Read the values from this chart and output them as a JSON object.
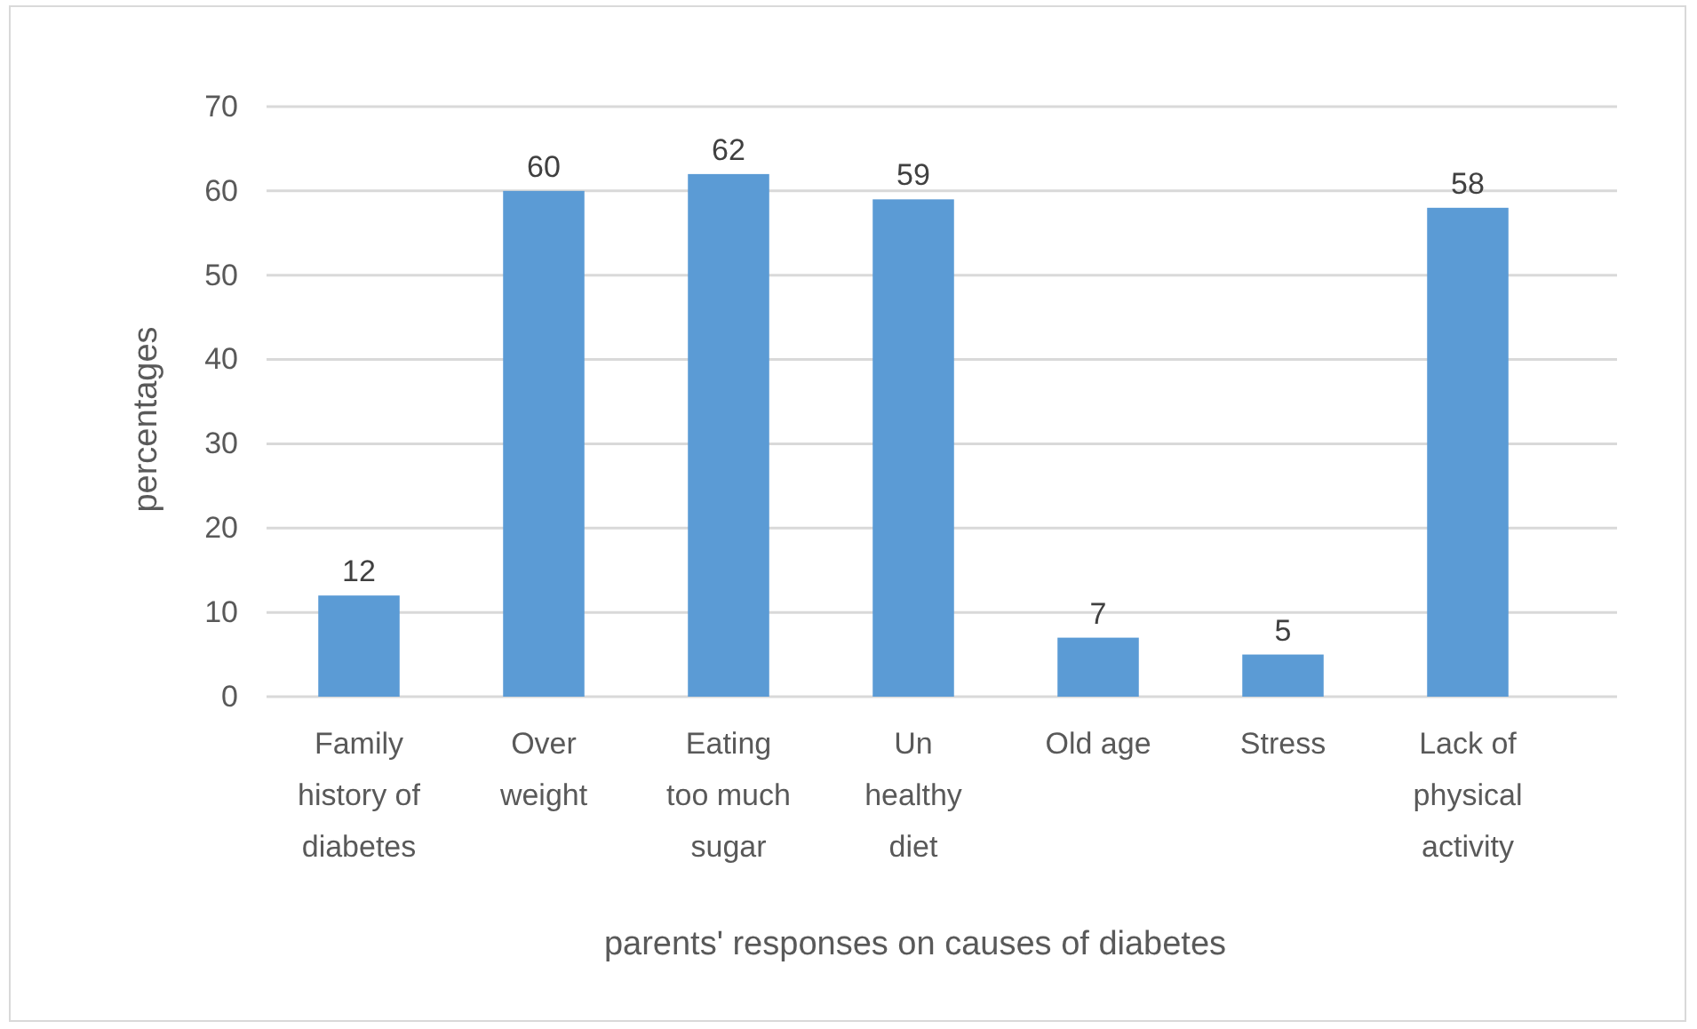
{
  "chart_data": {
    "type": "bar",
    "categories": [
      "Family history of diabetes",
      "Over weight",
      "Eating too much sugar",
      "Un healthy diet",
      "Old age",
      "Stress",
      "Lack of physical activity"
    ],
    "values": [
      12,
      60,
      62,
      59,
      7,
      5,
      58
    ],
    "color": "#5b9bd5",
    "xlabel": "parents' responses on causes of diabetes",
    "ylabel": "percentages",
    "ylim": [
      0,
      70
    ],
    "yticks": [
      0,
      10,
      20,
      30,
      40,
      50,
      60,
      70
    ],
    "grid": "y",
    "data_labels": true
  }
}
